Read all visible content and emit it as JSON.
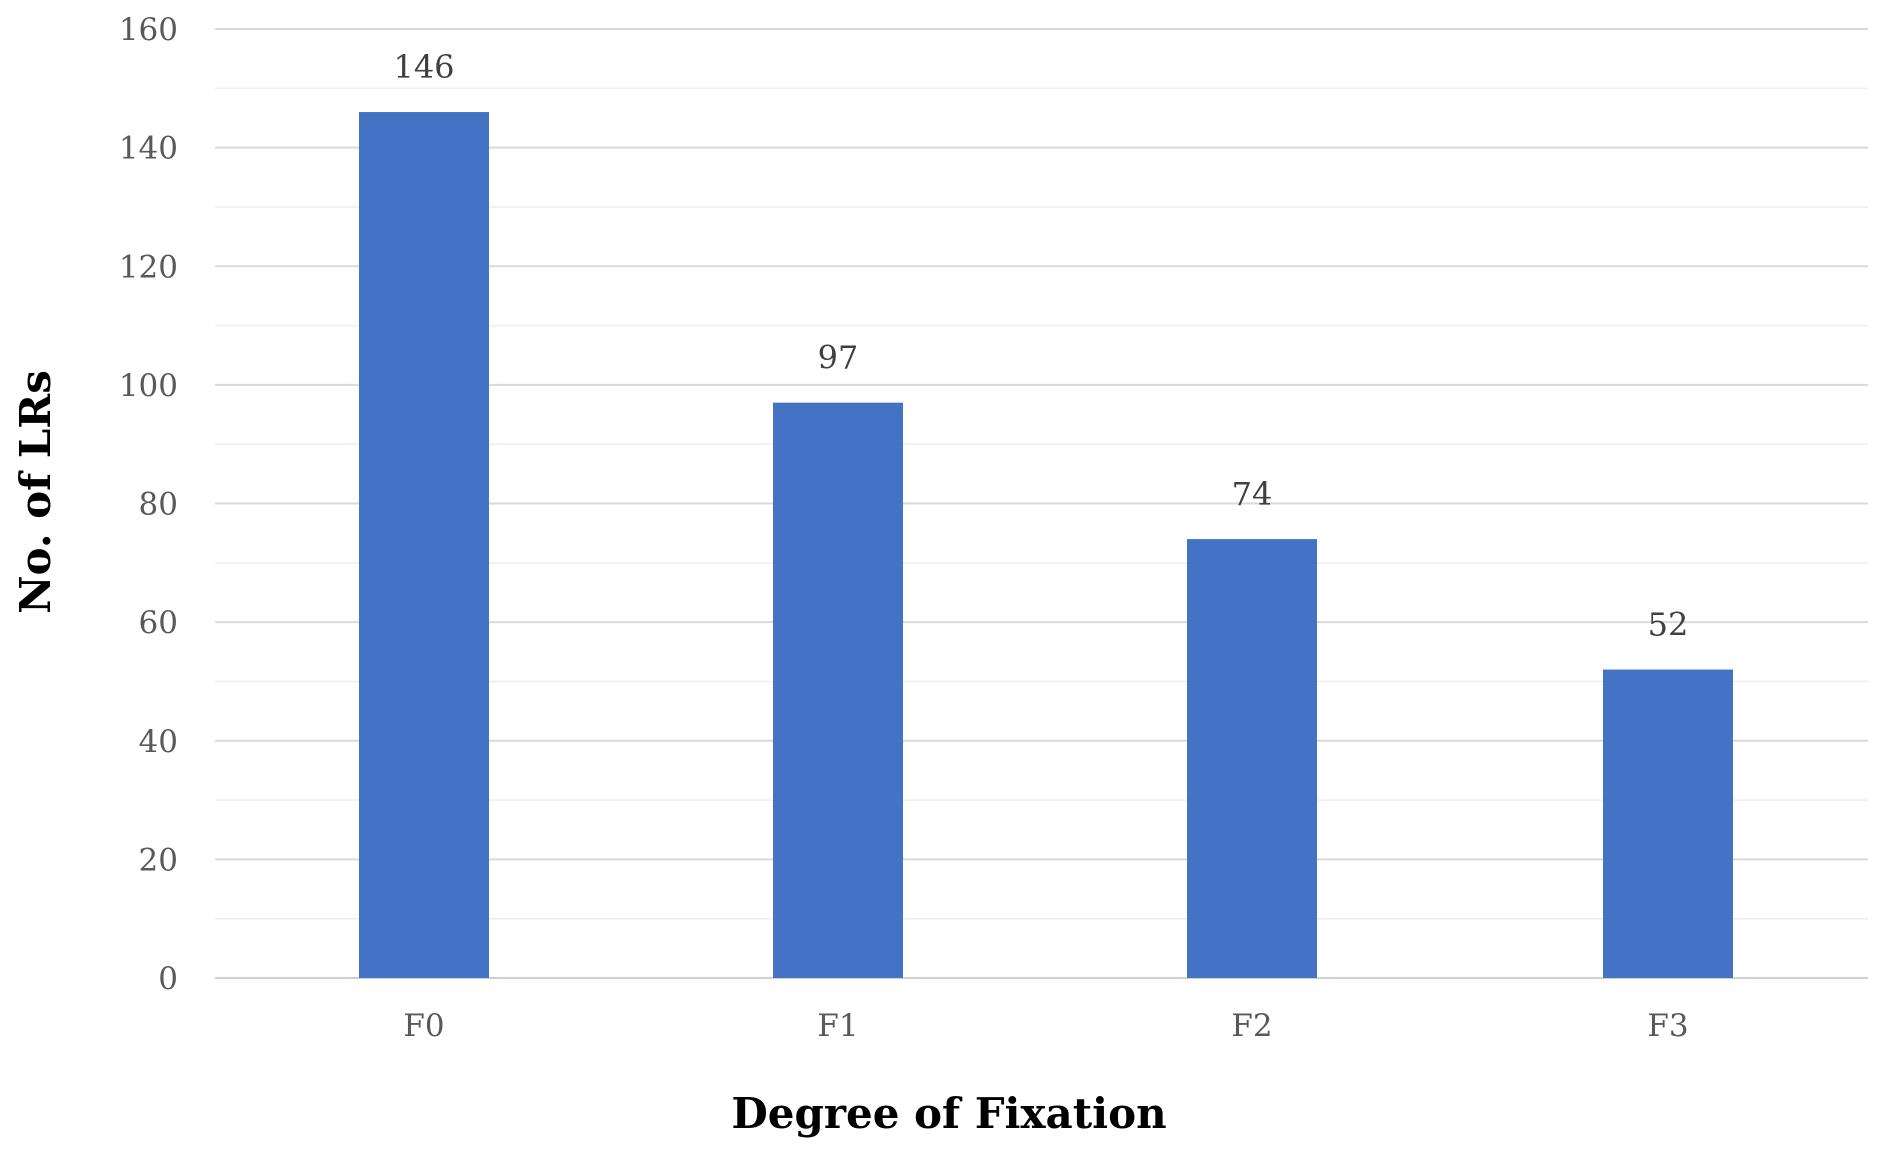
{
  "chart_data": {
    "type": "bar",
    "categories": [
      "F0",
      "F1",
      "F2",
      "F3"
    ],
    "values": [
      146,
      97,
      74,
      52
    ],
    "title": "",
    "xlabel": "Degree of Fixation",
    "ylabel": "No. of LRs",
    "ylim": [
      0,
      160
    ],
    "yticks": [
      0,
      20,
      40,
      60,
      80,
      100,
      120,
      140,
      160
    ],
    "ytick_labels": [
      "0",
      "20",
      "40",
      "60",
      "80",
      "100",
      "120",
      "140",
      "160"
    ],
    "data_labels": [
      "146",
      "97",
      "74",
      "52"
    ],
    "grid": true,
    "legend": "none",
    "bar_color": "#4472c4"
  }
}
